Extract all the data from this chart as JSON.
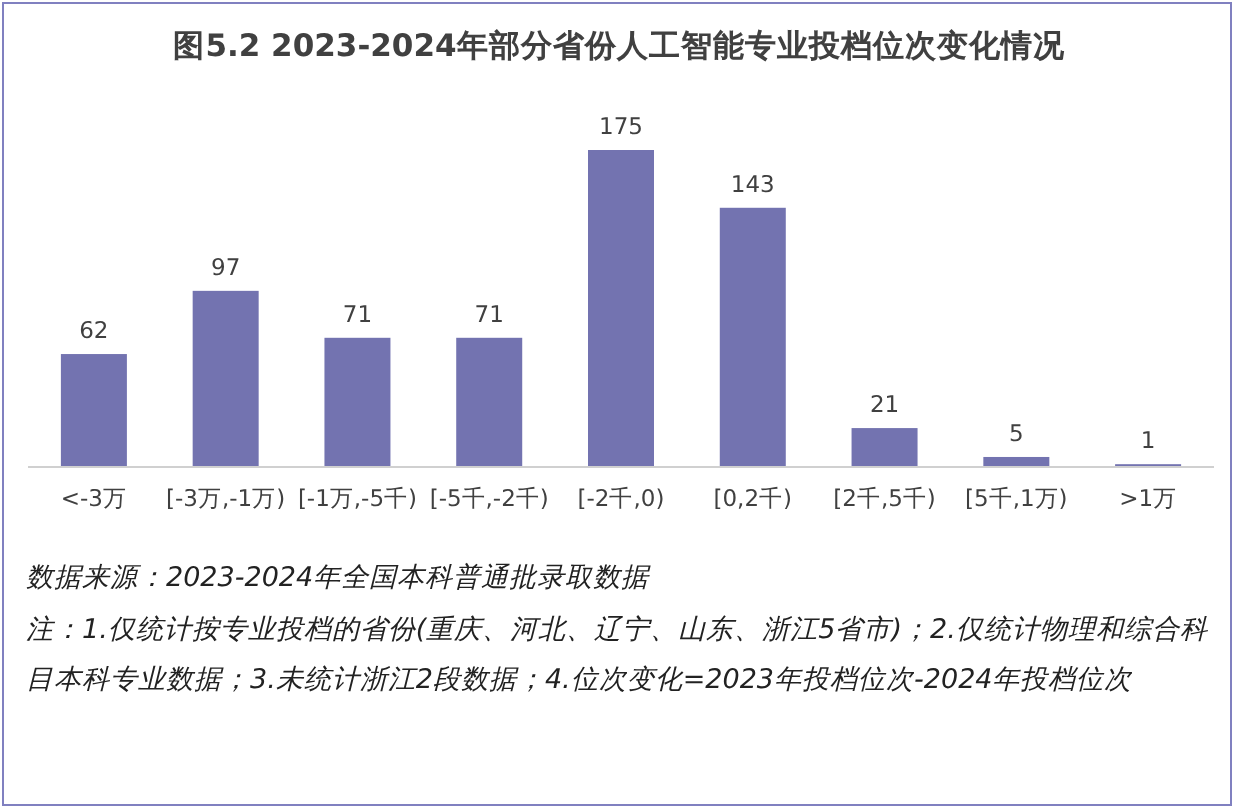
{
  "chart_data": {
    "type": "bar",
    "title": "图5.2 2023-2024年部分省份人工智能专业投档位次变化情况",
    "categories": [
      "<-3万",
      "[-3万,-1万)",
      "[-1万,-5千)",
      "[-5千,-2千)",
      "[-2千,0)",
      "[0,2千)",
      "[2千,5千)",
      "[5千,1万)",
      ">1万"
    ],
    "values": [
      62,
      97,
      71,
      71,
      175,
      143,
      21,
      5,
      1
    ],
    "color": "#7373b0",
    "data_labels": true,
    "annotations": [
      "数据来源：2023-2024年全国本科普通批录取数据",
      "注：1.仅统计按专业投档的省份(重庆、河北、辽宁、山东、浙江5省市)；2.仅统计物理和综合科目本科专业数据；3.未统计浙江2段数据；4.位次变化=2023年投档位次-2024年投档位次"
    ]
  }
}
